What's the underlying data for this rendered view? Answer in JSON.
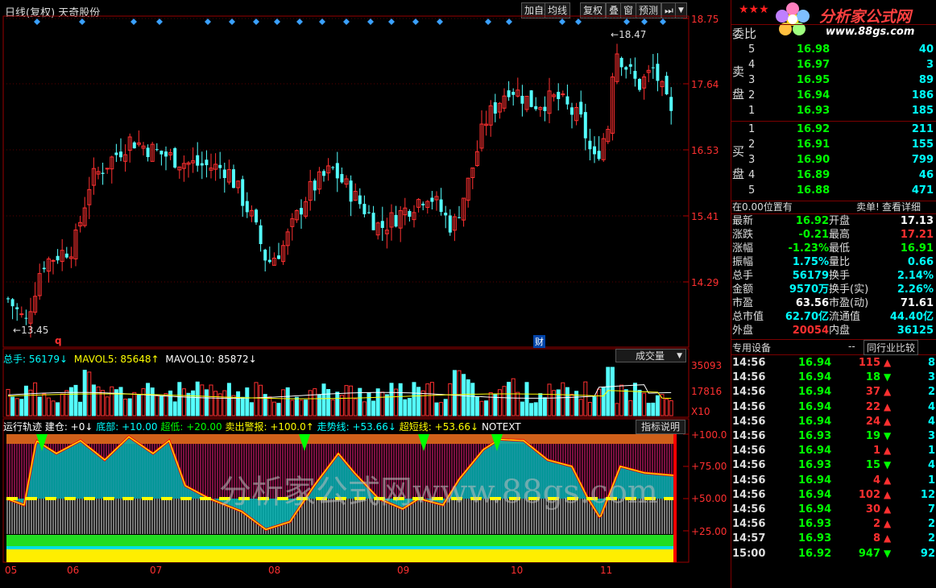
{
  "header": {
    "title": "日线(复权) 天奇股份",
    "buttons": [
      "加自选",
      "均线",
      "复权",
      "叠",
      "窗",
      "预测"
    ],
    "menu_arrow": "▼"
  },
  "price_axis": [
    "18.75",
    "17.64",
    "16.53",
    "15.41",
    "14.29"
  ],
  "annotations": {
    "high_label": "18.47",
    "low_label": "13.45",
    "q_marker": "q",
    "cai_marker": "财"
  },
  "volume": {
    "summary": [
      {
        "text": "总手: 56179↓",
        "color": "#00ffff"
      },
      {
        "text": "MAVOL5: 85648↑",
        "color": "#ffff00"
      },
      {
        "text": "MAVOL10: 85872↓",
        "color": "#ffffff"
      }
    ],
    "dropdown": "成交量",
    "axis": [
      "35093",
      "17816",
      "X10"
    ]
  },
  "indicator": {
    "summary": [
      {
        "text": "运行轨迹 建仓: +0↓",
        "color": "#ffffff"
      },
      {
        "text": "底部: +10.00",
        "color": "#00ffff"
      },
      {
        "text": "超低: +20.00",
        "color": "#00ff00"
      },
      {
        "text": "卖出警报: +100.0↑",
        "color": "#ffff00"
      },
      {
        "text": "走势线: +53.66↓",
        "color": "#00ffff"
      },
      {
        "text": "超短线: +53.66↓",
        "color": "#ffff00"
      },
      {
        "text": "NOTEXT",
        "color": "#ffffff"
      }
    ],
    "explain_button": "指标说明",
    "axis": [
      "+100.0",
      "+75.00",
      "+50.00",
      "+25.00"
    ]
  },
  "x_axis": [
    "05",
    "06",
    "07",
    "08",
    "09",
    "10",
    "11"
  ],
  "watermark": "分析家公式网www.88gs.com",
  "logo": {
    "stars": "★★★",
    "title": "分析家公式网",
    "url": "www.88gs.com"
  },
  "quote": {
    "weibi_label": "委比",
    "sell_label": [
      "卖",
      "盘"
    ],
    "buy_label": [
      "买",
      "盘"
    ],
    "sell": [
      {
        "n": "5",
        "p": "16.98",
        "v": "40"
      },
      {
        "n": "4",
        "p": "16.97",
        "v": "3"
      },
      {
        "n": "3",
        "p": "16.95",
        "v": "89"
      },
      {
        "n": "2",
        "p": "16.94",
        "v": "186"
      },
      {
        "n": "1",
        "p": "16.93",
        "v": "185"
      }
    ],
    "buy": [
      {
        "n": "1",
        "p": "16.92",
        "v": "211"
      },
      {
        "n": "2",
        "p": "16.91",
        "v": "155"
      },
      {
        "n": "3",
        "p": "16.90",
        "v": "799"
      },
      {
        "n": "4",
        "p": "16.89",
        "v": "46"
      },
      {
        "n": "5",
        "p": "16.88",
        "v": "471"
      }
    ],
    "position": "在0.00位置有",
    "sell_order": "卖单!",
    "detail": "查看详细",
    "stats": [
      {
        "l1": "最新",
        "v1": "16.92",
        "c1": "#00ff00",
        "l2": "开盘",
        "v2": "17.13",
        "c2": "#ffffff"
      },
      {
        "l1": "涨跌",
        "v1": "-0.21",
        "c1": "#00ff00",
        "l2": "最高",
        "v2": "17.21",
        "c2": "#ff3030"
      },
      {
        "l1": "涨幅",
        "v1": "-1.23%",
        "c1": "#00ff00",
        "l2": "最低",
        "v2": "16.91",
        "c2": "#00ff00"
      },
      {
        "l1": "振幅",
        "v1": "1.75%",
        "c1": "#00ffff",
        "l2": "量比",
        "v2": "0.66",
        "c2": "#00ffff"
      },
      {
        "l1": "总手",
        "v1": "56179",
        "c1": "#00ffff",
        "l2": "换手",
        "v2": "2.14%",
        "c2": "#00ffff"
      },
      {
        "l1": "金额",
        "v1": "9570万",
        "c1": "#00ffff",
        "l2": "换手(实)",
        "v2": "2.26%",
        "c2": "#00ffff"
      },
      {
        "l1": "市盈",
        "v1": "63.56",
        "c1": "#ffffff",
        "l2": "市盈(动)",
        "v2": "71.61",
        "c2": "#ffffff"
      },
      {
        "l1": "总市值",
        "v1": "62.70亿",
        "c1": "#00ffff",
        "l2": "流通值",
        "v2": "44.40亿",
        "c2": "#00ffff"
      },
      {
        "l1": "外盘",
        "v1": "20054",
        "c1": "#ff3030",
        "l2": "内盘",
        "v2": "36125",
        "c2": "#00ffff"
      }
    ],
    "tab_device": "专用设备",
    "tab_dash": "--",
    "tab_compare": "同行业比较",
    "ticks": [
      {
        "t": "14:56",
        "p": "16.94",
        "v": "115",
        "dir": "up",
        "x": "8"
      },
      {
        "t": "14:56",
        "p": "16.94",
        "v": "18",
        "dir": "down",
        "x": "3"
      },
      {
        "t": "14:56",
        "p": "16.94",
        "v": "37",
        "dir": "up",
        "x": "2"
      },
      {
        "t": "14:56",
        "p": "16.94",
        "v": "22",
        "dir": "up",
        "x": "4"
      },
      {
        "t": "14:56",
        "p": "16.94",
        "v": "24",
        "dir": "up",
        "x": "4"
      },
      {
        "t": "14:56",
        "p": "16.93",
        "v": "19",
        "dir": "down",
        "x": "3"
      },
      {
        "t": "14:56",
        "p": "16.94",
        "v": "1",
        "dir": "up",
        "x": "1"
      },
      {
        "t": "14:56",
        "p": "16.93",
        "v": "15",
        "dir": "down",
        "x": "4"
      },
      {
        "t": "14:56",
        "p": "16.94",
        "v": "4",
        "dir": "up",
        "x": "1"
      },
      {
        "t": "14:56",
        "p": "16.94",
        "v": "102",
        "dir": "up",
        "x": "12"
      },
      {
        "t": "14:56",
        "p": "16.94",
        "v": "30",
        "dir": "up",
        "x": "7"
      },
      {
        "t": "14:56",
        "p": "16.93",
        "v": "2",
        "dir": "up",
        "x": "2"
      },
      {
        "t": "14:57",
        "p": "16.93",
        "v": "8",
        "dir": "up",
        "x": "2"
      },
      {
        "t": "15:00",
        "p": "16.92",
        "v": "947",
        "dir": "down",
        "x": "92"
      }
    ]
  },
  "colors": {
    "up": "#ff3030",
    "down": "#54ffff",
    "axis_red": "#b00000",
    "buy_arrow": "#ff3030",
    "sell_arrow": "#00ff00"
  }
}
